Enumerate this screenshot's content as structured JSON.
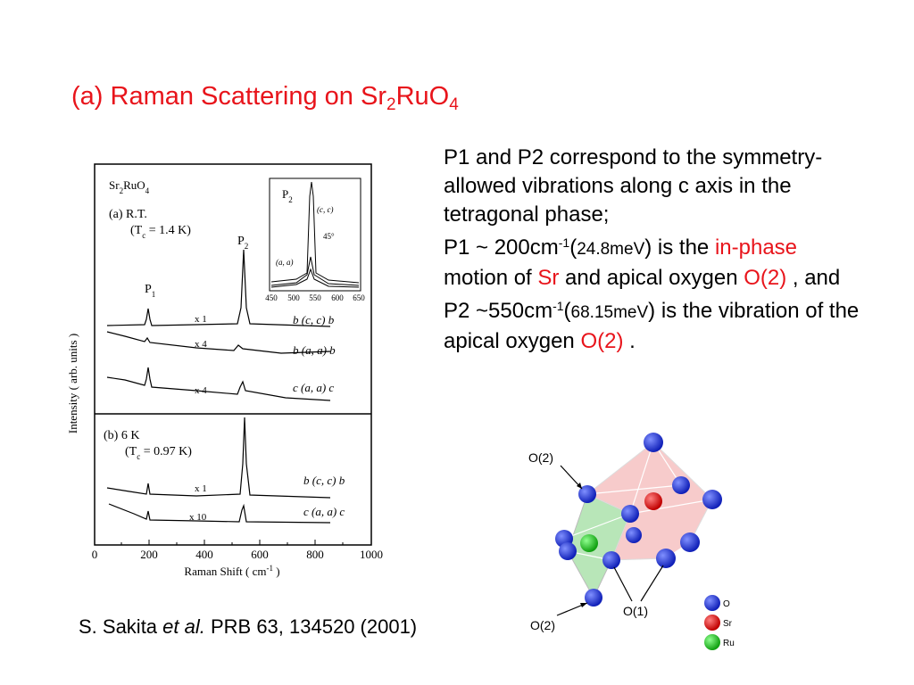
{
  "title": {
    "prefix": "(a) Raman Scattering on Sr",
    "sub1": "2",
    "mid": "RuO",
    "sub2": "4"
  },
  "paragraph1": "P1 and P2 correspond to the symmetry-allowed vibrations along c axis in the tetragonal phase;",
  "paragraph2": {
    "a": "P1 ~ 200cm",
    "sup": "-1",
    "b": "(",
    "energy": "24.8meV",
    "c": ") is the ",
    "in_phase": "in-phase",
    "d": " motion of ",
    "sr": "Sr",
    "e": " and apical oxygen ",
    "o2": "O(2)",
    "f": " , and"
  },
  "paragraph3": {
    "a": "P2 ~550cm",
    "sup": "-1",
    "b": "(",
    "energy": "68.15meV",
    "c": ") is the vibration of the apical oxygen ",
    "o2": "O(2)",
    "d": " ."
  },
  "citation": {
    "authors": "S. Sakita ",
    "etal": "et al.",
    "ref": " PRB 63, 134520 (2001)"
  },
  "colors": {
    "accent": "#e8141b",
    "oxygen": "#1a2fd0",
    "strontium": "#e01818",
    "ruthenium": "#22c822"
  },
  "figure": {
    "compound": {
      "a": "Sr",
      "s": "2",
      "b": "RuO",
      "t": "4"
    },
    "panel_a_label": "(a) R.T.",
    "panel_a_tc": {
      "a": "(T",
      "s": "c",
      "b": " = 1.4 K)"
    },
    "panel_b_label": "(b) 6 K",
    "panel_b_tc": {
      "a": "(T",
      "s": "c",
      "b": " = 0.97 K)"
    },
    "peak_p1": {
      "a": "P",
      "s": "1"
    },
    "peak_p2": {
      "a": "P",
      "s": "2"
    },
    "ylabel": "Intensity ( arb. units )",
    "xlabel": {
      "a": "Raman Shift ( cm",
      "sup": "-1",
      "b": " )"
    },
    "xticks": [
      "0",
      "200",
      "400",
      "600",
      "800",
      "1000"
    ],
    "traces_a": [
      {
        "mult": "x 1",
        "pol": "b (c, c) b"
      },
      {
        "mult": "x 4",
        "pol": "b (a, a) b"
      },
      {
        "mult": "x 4",
        "pol": "c (a, a) c"
      }
    ],
    "traces_b": [
      {
        "mult": "x 1",
        "pol": "b (c, c) b"
      },
      {
        "mult": "x 10",
        "pol": "c (a, a) c"
      }
    ],
    "inset": {
      "peak": {
        "a": "P",
        "s": "2"
      },
      "cc": "(c, c)",
      "angle": "45°",
      "aa": "(a, a)",
      "xticks": [
        "450",
        "500",
        "550",
        "600",
        "650"
      ]
    }
  },
  "crystal": {
    "o2_top": "O(2)",
    "o2_bottom": "O(2)",
    "o1": "O(1)",
    "legend": [
      "O",
      "Sr",
      "Ru"
    ]
  }
}
